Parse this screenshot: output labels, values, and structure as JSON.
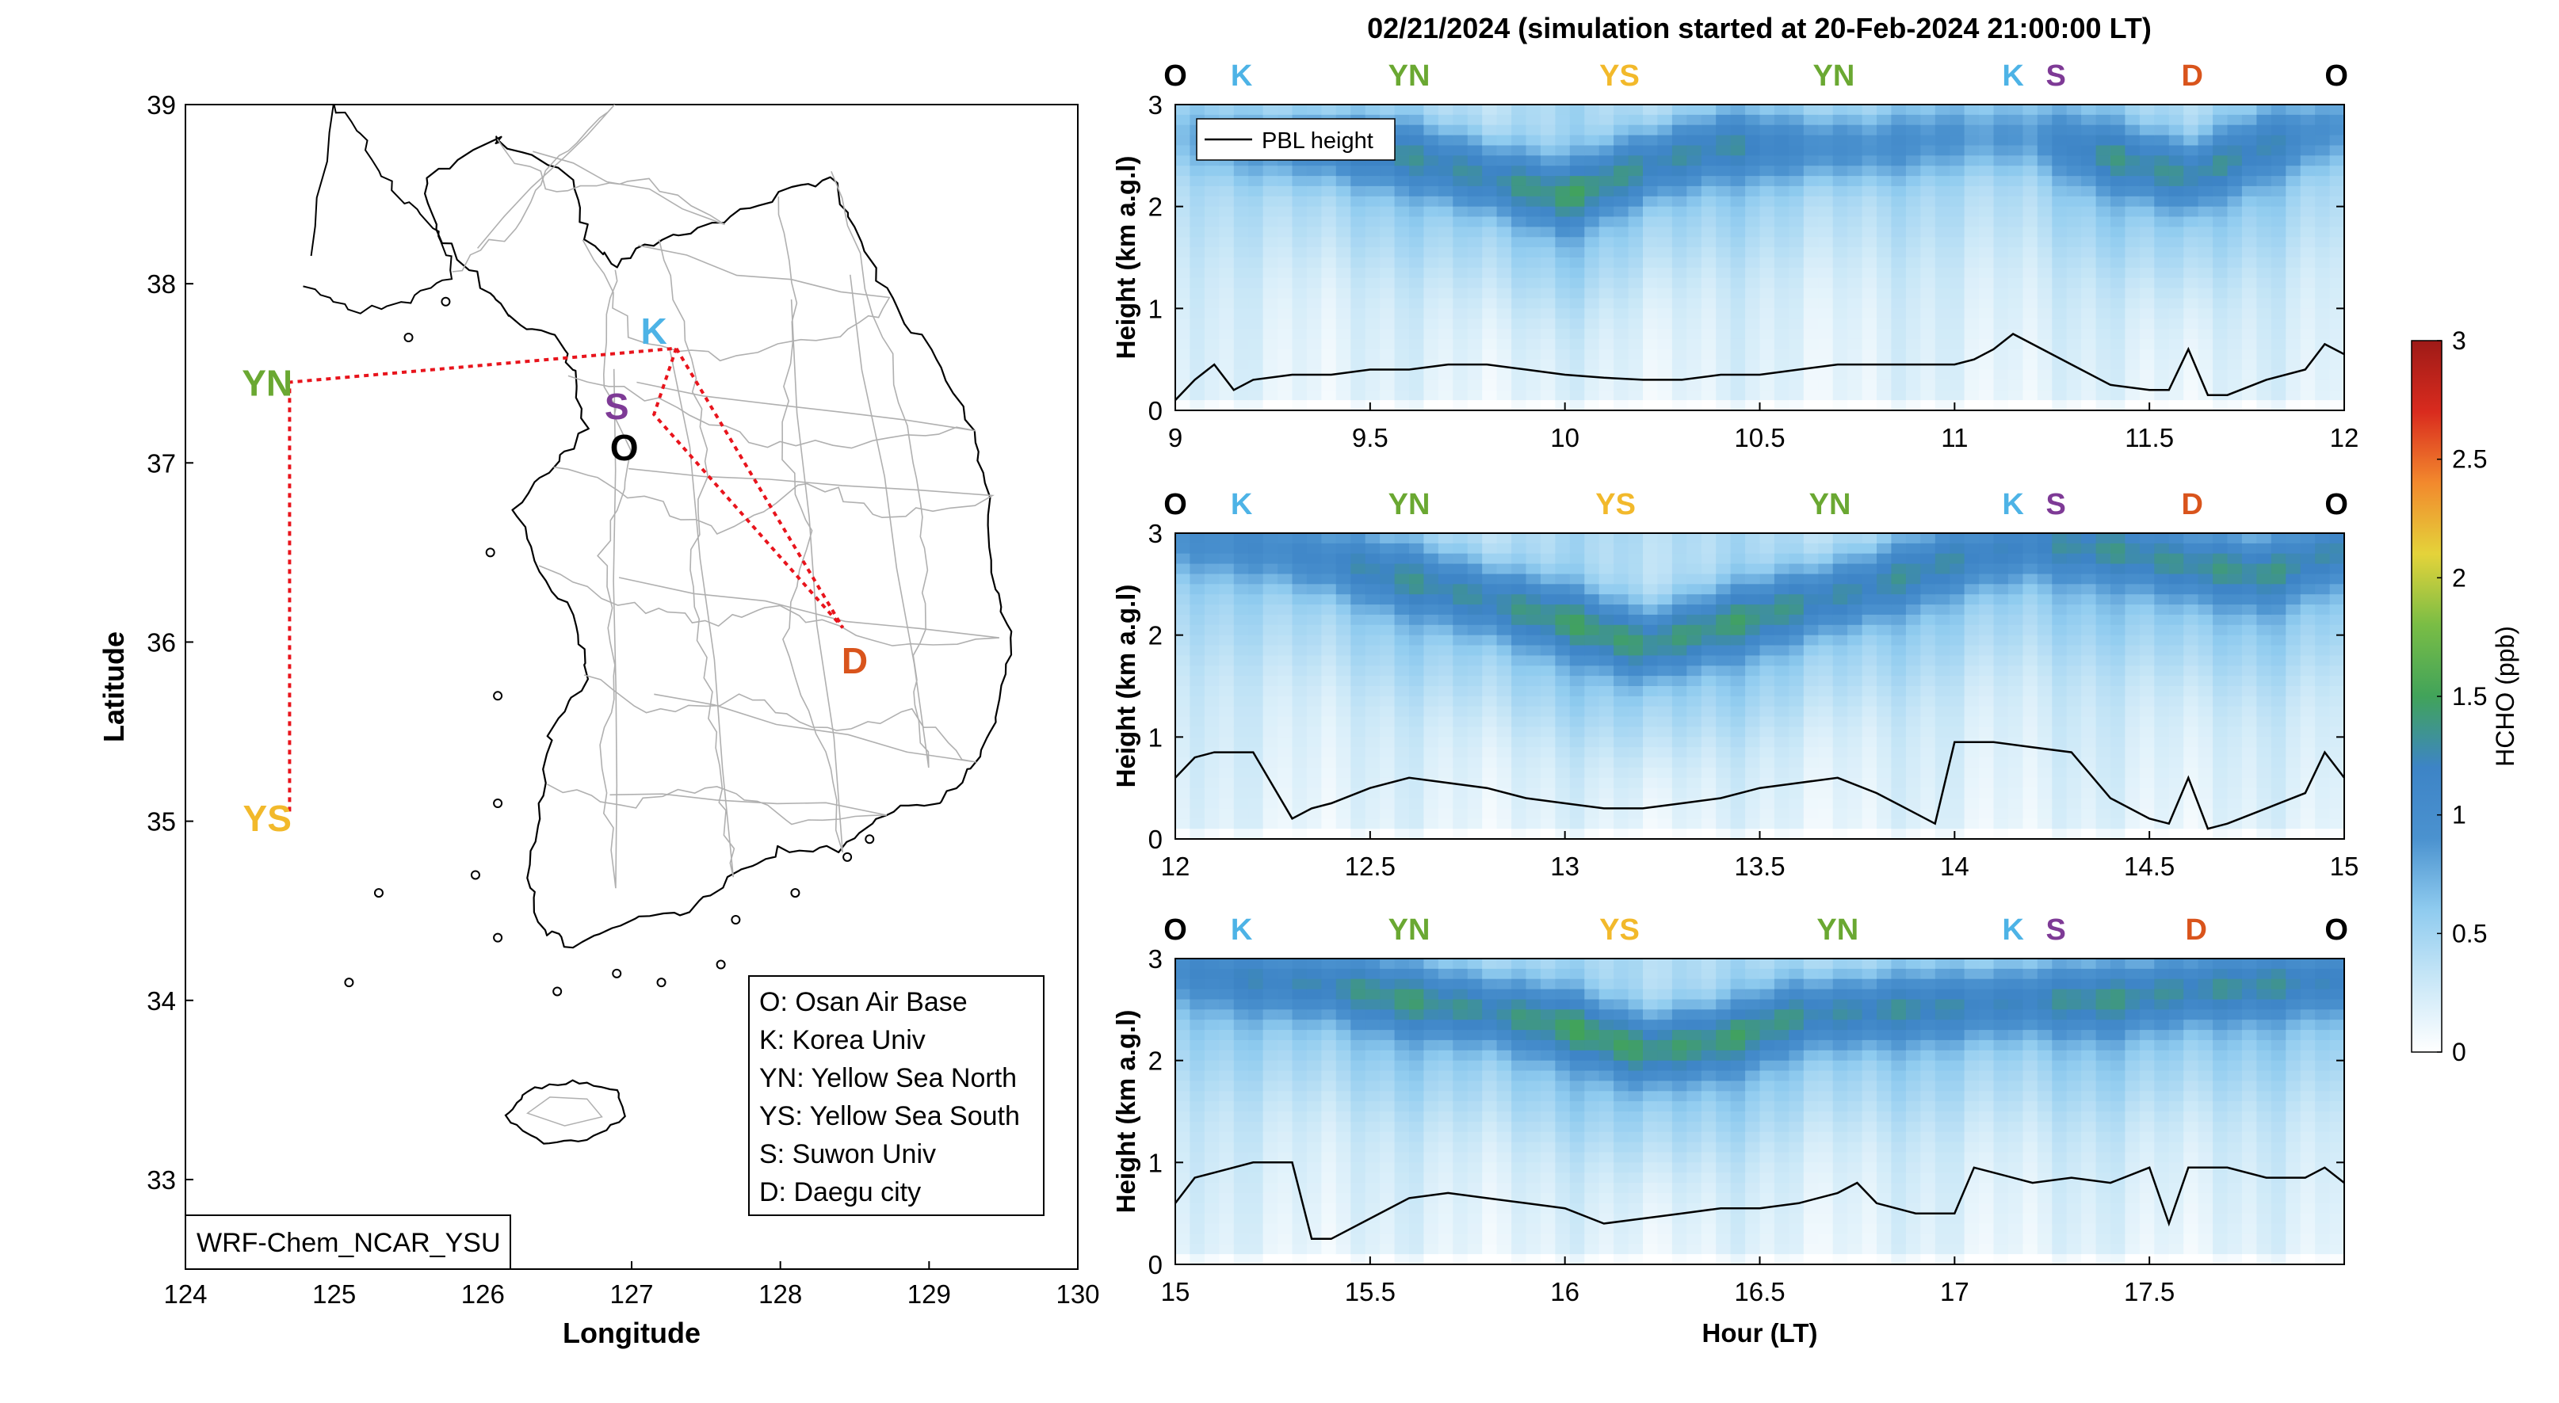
{
  "figure_title": "02/21/2024 (simulation started at 20-Feb-2024 21:00:00 LT)",
  "colors": {
    "O": "#000000",
    "K": "#4db3e6",
    "YN": "#6aa832",
    "YS": "#f2b92b",
    "S": "#7e3a96",
    "D": "#d9541c",
    "route": "#e8141c",
    "pbl": "#000000",
    "coast": "#000000",
    "admin": "#b0b0b0"
  },
  "colormap": [
    "#ffffff",
    "#c9e7f7",
    "#8fcbef",
    "#4b92cf",
    "#3d84c6",
    "#41a35a",
    "#79bd45",
    "#e4d33a",
    "#f2892d",
    "#d92b1e",
    "#9e1a17"
  ],
  "chart_data": [
    {
      "type": "map",
      "xlabel": "Longitude",
      "ylabel": "Latitude",
      "xlim": [
        124,
        130
      ],
      "ylim": [
        32.5,
        39
      ],
      "xticks": [
        "124",
        "125",
        "126",
        "127",
        "128",
        "129",
        "130"
      ],
      "yticks": [
        "33",
        "34",
        "35",
        "36",
        "37",
        "38",
        "39"
      ],
      "model_label": "WRF-Chem_NCAR_YSU",
      "sites": [
        {
          "code": "O",
          "lon": 126.95,
          "lat": 37.09
        },
        {
          "code": "K",
          "lon": 127.15,
          "lat": 37.74
        },
        {
          "code": "S",
          "lon": 126.9,
          "lat": 37.32
        },
        {
          "code": "D",
          "lon": 128.5,
          "lat": 35.9
        },
        {
          "code": "YN",
          "lon": 124.55,
          "lat": 37.45
        },
        {
          "code": "YS",
          "lon": 124.55,
          "lat": 35.02
        }
      ],
      "route": [
        {
          "lon": 127.3,
          "lat": 37.64
        },
        {
          "lon": 127.15,
          "lat": 37.27
        },
        {
          "lon": 128.42,
          "lat": 36.08
        },
        {
          "lon": 127.3,
          "lat": 37.64
        },
        {
          "lon": 124.7,
          "lat": 37.45
        },
        {
          "lon": 124.7,
          "lat": 35.05
        }
      ],
      "legend": [
        "O: Osan Air Base",
        "K: Korea Univ",
        "YN: Yellow Sea North",
        "YS: Yellow Sea South",
        "S: Suwon Univ",
        "D: Daegu city"
      ]
    },
    {
      "type": "heatmap",
      "ylabel": "Height (km a.g.l)",
      "xlim": [
        9,
        12
      ],
      "ylim": [
        0,
        3
      ],
      "xticks": [
        "9",
        "9.5",
        "10",
        "10.5",
        "11",
        "11.5",
        "12"
      ],
      "yticks": [
        "0",
        "1",
        "2",
        "3"
      ],
      "legend": "PBL height",
      "site_markers": [
        {
          "code": "O",
          "x": 9.0
        },
        {
          "code": "K",
          "x": 9.17
        },
        {
          "code": "YN",
          "x": 9.6
        },
        {
          "code": "YS",
          "x": 10.14
        },
        {
          "code": "YN",
          "x": 10.69
        },
        {
          "code": "K",
          "x": 11.15
        },
        {
          "code": "S",
          "x": 11.26
        },
        {
          "code": "D",
          "x": 11.61
        },
        {
          "code": "O",
          "x": 11.98
        }
      ],
      "pbl_height": {
        "x": [
          9.0,
          9.05,
          9.1,
          9.15,
          9.2,
          9.3,
          9.4,
          9.5,
          9.6,
          9.7,
          9.8,
          9.9,
          10.0,
          10.1,
          10.2,
          10.3,
          10.4,
          10.5,
          10.6,
          10.7,
          10.8,
          10.9,
          11.0,
          11.05,
          11.1,
          11.15,
          11.2,
          11.3,
          11.4,
          11.5,
          11.55,
          11.6,
          11.65,
          11.7,
          11.8,
          11.9,
          11.95,
          12.0
        ],
        "y": [
          0.1,
          0.3,
          0.45,
          0.2,
          0.3,
          0.35,
          0.35,
          0.4,
          0.4,
          0.45,
          0.45,
          0.4,
          0.35,
          0.32,
          0.3,
          0.3,
          0.35,
          0.35,
          0.4,
          0.45,
          0.45,
          0.45,
          0.45,
          0.5,
          0.6,
          0.75,
          0.65,
          0.45,
          0.25,
          0.2,
          0.2,
          0.6,
          0.15,
          0.15,
          0.3,
          0.4,
          0.65,
          0.55
        ]
      },
      "field": {
        "layer_height_at": [
          2.7,
          2.6,
          2.6,
          2.5,
          2.3,
          2.1,
          2.4,
          2.6,
          2.6,
          2.6,
          2.7,
          2.7,
          2.5,
          2.3,
          2.6,
          2.8
        ],
        "layer_strength_at": [
          0.3,
          0.5,
          0.8,
          0.85,
          0.9,
          0.95,
          0.9,
          0.85,
          0.7,
          0.6,
          0.5,
          0.5,
          0.85,
          0.9,
          0.75,
          0.5
        ],
        "low_level_at": [
          0.4,
          0.35,
          0.35,
          0.4,
          0.5,
          0.6,
          0.5,
          0.4,
          0.35,
          0.35,
          0.4,
          0.5,
          0.55,
          0.6,
          0.5,
          0.4
        ]
      }
    },
    {
      "type": "heatmap",
      "ylabel": "Height (km a.g.l)",
      "xlim": [
        12,
        15
      ],
      "ylim": [
        0,
        3
      ],
      "xticks": [
        "12",
        "12.5",
        "13",
        "13.5",
        "14",
        "14.5",
        "15"
      ],
      "yticks": [
        "0",
        "1",
        "2",
        "3"
      ],
      "site_markers": [
        {
          "code": "O",
          "x": 12.0
        },
        {
          "code": "K",
          "x": 12.17
        },
        {
          "code": "YN",
          "x": 12.6
        },
        {
          "code": "YS",
          "x": 13.13
        },
        {
          "code": "YN",
          "x": 13.68
        },
        {
          "code": "K",
          "x": 14.15
        },
        {
          "code": "S",
          "x": 14.26
        },
        {
          "code": "D",
          "x": 14.61
        },
        {
          "code": "O",
          "x": 14.98
        }
      ],
      "pbl_height": {
        "x": [
          12.0,
          12.05,
          12.1,
          12.2,
          12.3,
          12.35,
          12.4,
          12.5,
          12.6,
          12.7,
          12.8,
          12.9,
          13.0,
          13.1,
          13.2,
          13.3,
          13.4,
          13.5,
          13.6,
          13.7,
          13.8,
          13.9,
          13.95,
          14.0,
          14.1,
          14.2,
          14.3,
          14.4,
          14.5,
          14.55,
          14.6,
          14.65,
          14.7,
          14.8,
          14.9,
          14.95,
          15.0
        ],
        "y": [
          0.6,
          0.8,
          0.85,
          0.85,
          0.2,
          0.3,
          0.35,
          0.5,
          0.6,
          0.55,
          0.5,
          0.4,
          0.35,
          0.3,
          0.3,
          0.35,
          0.4,
          0.5,
          0.55,
          0.6,
          0.45,
          0.25,
          0.15,
          0.95,
          0.95,
          0.9,
          0.85,
          0.4,
          0.2,
          0.15,
          0.6,
          0.1,
          0.15,
          0.3,
          0.45,
          0.85,
          0.6
        ]
      },
      "field": {
        "layer_height_at": [
          2.95,
          2.9,
          2.75,
          2.55,
          2.35,
          2.15,
          1.9,
          2.1,
          2.3,
          2.5,
          2.75,
          2.9,
          2.85,
          2.7,
          2.6,
          2.85
        ],
        "layer_strength_at": [
          0.5,
          0.6,
          0.75,
          0.85,
          0.9,
          0.95,
          1.0,
          0.95,
          0.9,
          0.85,
          0.8,
          0.75,
          0.8,
          0.9,
          0.85,
          0.8
        ],
        "low_level_at": [
          0.45,
          0.45,
          0.45,
          0.45,
          0.5,
          0.55,
          0.6,
          0.55,
          0.5,
          0.45,
          0.45,
          0.5,
          0.55,
          0.55,
          0.5,
          0.5
        ]
      }
    },
    {
      "type": "heatmap",
      "ylabel": "Height (km a.g.l)",
      "xlabel": "Hour (LT)",
      "xlim": [
        15,
        18
      ],
      "ylim": [
        0,
        3
      ],
      "xticks": [
        "15",
        "15.5",
        "16",
        "16.5",
        "17",
        "17.5"
      ],
      "yticks": [
        "0",
        "1",
        "2",
        "3"
      ],
      "site_markers": [
        {
          "code": "O",
          "x": 15.0
        },
        {
          "code": "K",
          "x": 15.17
        },
        {
          "code": "YN",
          "x": 15.6
        },
        {
          "code": "YS",
          "x": 16.14
        },
        {
          "code": "YN",
          "x": 16.7
        },
        {
          "code": "K",
          "x": 17.15
        },
        {
          "code": "S",
          "x": 17.26
        },
        {
          "code": "D",
          "x": 17.62
        },
        {
          "code": "O",
          "x": 17.98
        }
      ],
      "pbl_height": {
        "x": [
          15.0,
          15.05,
          15.1,
          15.2,
          15.3,
          15.35,
          15.4,
          15.5,
          15.6,
          15.7,
          15.8,
          15.9,
          16.0,
          16.1,
          16.2,
          16.3,
          16.4,
          16.5,
          16.6,
          16.7,
          16.75,
          16.8,
          16.9,
          17.0,
          17.05,
          17.1,
          17.2,
          17.3,
          17.4,
          17.5,
          17.55,
          17.6,
          17.65,
          17.7,
          17.8,
          17.9,
          17.95,
          18.0
        ],
        "y": [
          0.6,
          0.85,
          0.9,
          1.0,
          1.0,
          0.25,
          0.25,
          0.45,
          0.65,
          0.7,
          0.65,
          0.6,
          0.55,
          0.4,
          0.45,
          0.5,
          0.55,
          0.55,
          0.6,
          0.7,
          0.8,
          0.6,
          0.5,
          0.5,
          0.95,
          0.9,
          0.8,
          0.85,
          0.8,
          0.95,
          0.4,
          0.95,
          0.95,
          0.95,
          0.85,
          0.85,
          0.95,
          0.8
        ]
      },
      "field": {
        "layer_height_at": [
          2.9,
          2.8,
          2.75,
          2.6,
          2.5,
          2.35,
          2.1,
          2.2,
          2.45,
          2.5,
          2.55,
          2.6,
          2.6,
          2.7,
          2.75,
          2.8
        ],
        "layer_strength_at": [
          0.55,
          0.7,
          0.85,
          0.9,
          0.9,
          0.95,
          1.0,
          0.95,
          0.9,
          0.85,
          0.8,
          0.8,
          0.85,
          0.85,
          0.8,
          0.75
        ],
        "low_level_at": [
          0.55,
          0.55,
          0.5,
          0.5,
          0.5,
          0.55,
          0.65,
          0.55,
          0.5,
          0.45,
          0.45,
          0.5,
          0.55,
          0.55,
          0.5,
          0.5
        ]
      }
    }
  ],
  "colorbar": {
    "label": "HCHO (ppb)",
    "min": 0,
    "max": 3,
    "ticks": [
      "0",
      "0.5",
      "1",
      "1.5",
      "2",
      "2.5",
      "3"
    ]
  }
}
